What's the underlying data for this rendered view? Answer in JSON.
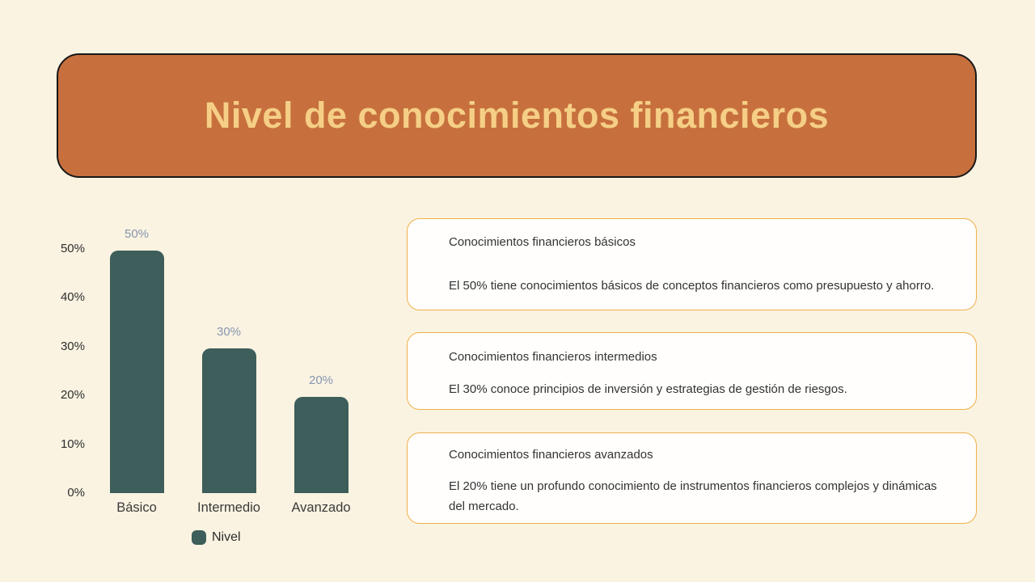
{
  "theme": {
    "background": "#FAF3E1",
    "banner_fill": "#C7703E",
    "banner_border": "#181818",
    "banner_text": "#F5CF85",
    "bar_color": "#3D5E5A",
    "value_label_color": "#8795B0",
    "card_border": "#EFAF4B"
  },
  "header": {
    "title": "Nivel de conocimientos financieros"
  },
  "chart_data": {
    "type": "bar",
    "title": "",
    "xlabel": "",
    "ylabel": "",
    "categories": [
      "Básico",
      "Intermedio",
      "Avanzado"
    ],
    "values": [
      50,
      30,
      20
    ],
    "value_labels": [
      "50%",
      "30%",
      "20%"
    ],
    "y_ticks": [
      {
        "label": "0%",
        "value": 0
      },
      {
        "label": "10%",
        "value": 10
      },
      {
        "label": "20%",
        "value": 20
      },
      {
        "label": "30%",
        "value": 30
      },
      {
        "label": "40%",
        "value": 40
      },
      {
        "label": "50%",
        "value": 50
      }
    ],
    "ylim": [
      0,
      50
    ],
    "grid": false,
    "legend_position": "bottom",
    "legend": [
      {
        "label": "Nivel",
        "color": "#3D5E5A"
      }
    ]
  },
  "cards": [
    {
      "title": "Conocimientos financieros básicos",
      "body": "El 50% tiene conocimientos básicos de conceptos financieros como presupuesto y ahorro."
    },
    {
      "title": "Conocimientos financieros intermedios",
      "body": "El 30% conoce principios de inversión y estrategias de gestión de riesgos."
    },
    {
      "title": "Conocimientos financieros avanzados",
      "body": "El 20% tiene un profundo conocimiento de instrumentos financieros complejos y dinámicas del mercado."
    }
  ]
}
